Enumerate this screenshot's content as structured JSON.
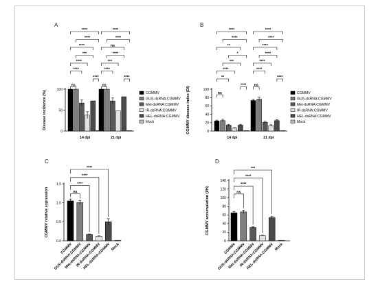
{
  "panels": [
    {
      "label": "A",
      "chart_data": {
        "type": "bar",
        "ylabel": "Disease incidence (%)",
        "xlabel": "",
        "ylim": [
          0,
          100
        ],
        "yticks": [
          "0",
          "50",
          "100"
        ],
        "categories": [
          "14 dpi",
          "21 dpi"
        ],
        "series": [
          {
            "name": "CGMMV",
            "values": [
              100,
              100
            ],
            "errors": [
              0,
              0
            ],
            "color": "#000000"
          },
          {
            "name": "GUS-dsRNA:CGMMV",
            "values": [
              100,
              100
            ],
            "errors": [
              0,
              0
            ],
            "color": "#7f7f7f"
          },
          {
            "name": "Met-dsRNA:CGMMV",
            "values": [
              67,
              72
            ],
            "errors": [
              7,
              7
            ],
            "color": "#595959"
          },
          {
            "name": "IR-dsRNA:CGMMV",
            "values": [
              38,
              48
            ],
            "errors": [
              8,
              0
            ],
            "color": "#e3e3e3"
          },
          {
            "name": "HEL-dsRNA:CGMMV",
            "values": [
              72,
              82
            ],
            "errors": [
              0,
              0
            ],
            "color": "#4a4a4a"
          },
          {
            "name": "Mock",
            "values": [
              0,
              0
            ],
            "errors": [
              0,
              0
            ],
            "color": "#bdbdbd"
          }
        ],
        "grid": false,
        "legend": "right"
      },
      "brackets": [
        {
          "group": 0,
          "from": 0,
          "to": 1,
          "label": "ns"
        },
        {
          "group": 0,
          "from": 0,
          "to": 2,
          "label": "****"
        },
        {
          "group": 0,
          "from": 0,
          "to": 3,
          "label": "****"
        },
        {
          "group": 0,
          "from": 0,
          "to": 4,
          "label": "****"
        },
        {
          "group": 0,
          "from": 0,
          "to": 5,
          "label": "****"
        },
        {
          "group": 0,
          "from": 1,
          "to": 4,
          "label": "***"
        },
        {
          "group": 0,
          "from": 1,
          "to": 5,
          "label": "****"
        },
        {
          "group": 0,
          "from": 4,
          "to": 5,
          "label": "****"
        },
        {
          "group": 1,
          "from": 0,
          "to": 1,
          "label": "ns"
        },
        {
          "group": 1,
          "from": 0,
          "to": 2,
          "label": "****"
        },
        {
          "group": 1,
          "from": 0,
          "to": 3,
          "label": "***"
        },
        {
          "group": 1,
          "from": 0,
          "to": 4,
          "label": "ns"
        },
        {
          "group": 1,
          "from": 0,
          "to": 5,
          "label": "****"
        },
        {
          "group": 1,
          "from": 1,
          "to": 4,
          "label": "****"
        },
        {
          "group": 1,
          "from": 1,
          "to": 5,
          "label": "****"
        },
        {
          "group": 1,
          "from": 4,
          "to": 5,
          "label": "****"
        }
      ]
    },
    {
      "label": "B",
      "chart_data": {
        "type": "bar",
        "ylabel": "CGMMV disease index (DI)",
        "xlabel": "",
        "ylim": [
          0,
          100
        ],
        "yticks": [
          "0",
          "20",
          "40",
          "60",
          "80",
          "100"
        ],
        "categories": [
          "14 dpi",
          "21 dpi"
        ],
        "series": [
          {
            "name": "CGMMV",
            "values": [
              24,
              73
            ],
            "errors": [
              2,
              3
            ],
            "color": "#000000"
          },
          {
            "name": "GUS-dsRNA:CGMMV",
            "values": [
              25,
              76
            ],
            "errors": [
              3,
              5
            ],
            "color": "#7f7f7f"
          },
          {
            "name": "Met-dsRNA:CGMMV",
            "values": [
              14,
              21
            ],
            "errors": [
              2,
              3
            ],
            "color": "#595959"
          },
          {
            "name": "IR-dsRNA:CGMMV",
            "values": [
              7,
              13
            ],
            "errors": [
              1,
              2
            ],
            "color": "#e3e3e3"
          },
          {
            "name": "HEL-dsRNA:CGMMV",
            "values": [
              14,
              25
            ],
            "errors": [
              2,
              2
            ],
            "color": "#4a4a4a"
          },
          {
            "name": "Mock",
            "values": [
              0,
              0
            ],
            "errors": [
              0,
              0
            ],
            "color": "#bdbdbd"
          }
        ],
        "grid": false,
        "legend": "right"
      },
      "brackets": [
        {
          "group": 0,
          "from": 0,
          "to": 1,
          "label": "ns"
        },
        {
          "group": 0,
          "from": 0,
          "to": 2,
          "label": "**"
        },
        {
          "group": 0,
          "from": 0,
          "to": 3,
          "label": "****"
        },
        {
          "group": 0,
          "from": 0,
          "to": 4,
          "label": "**"
        },
        {
          "group": 0,
          "from": 0,
          "to": 5,
          "label": "****"
        },
        {
          "group": 0,
          "from": 1,
          "to": 4,
          "label": "***"
        },
        {
          "group": 0,
          "from": 1,
          "to": 5,
          "label": "****"
        },
        {
          "group": 0,
          "from": 4,
          "to": 5,
          "label": "****"
        },
        {
          "group": 0,
          "from": 2,
          "to": 5,
          "label": "*"
        },
        {
          "group": 1,
          "from": 0,
          "to": 1,
          "label": "ns"
        },
        {
          "group": 1,
          "from": 0,
          "to": 2,
          "label": "****"
        },
        {
          "group": 1,
          "from": 0,
          "to": 3,
          "label": "****"
        },
        {
          "group": 1,
          "from": 0,
          "to": 4,
          "label": "****"
        },
        {
          "group": 1,
          "from": 0,
          "to": 5,
          "label": "****"
        },
        {
          "group": 1,
          "from": 1,
          "to": 4,
          "label": "****"
        },
        {
          "group": 1,
          "from": 1,
          "to": 5,
          "label": "****"
        },
        {
          "group": 1,
          "from": 4,
          "to": 5,
          "label": "****"
        }
      ]
    },
    {
      "label": "C",
      "chart_data": {
        "type": "bar",
        "ylabel": "CGMMV relative expression",
        "xlabel": "",
        "ylim": [
          0,
          1.5
        ],
        "yticks": [
          "0.0",
          "0.5",
          "1.0",
          "1.5"
        ],
        "categories": [
          "CGMMV",
          "GUS-dsRNA:CGMMV",
          "Met-dsRNA:CGMMV",
          "IR-dsRNA:CGMMV",
          "HEL-dsRNA:CGMMV",
          "Mock"
        ],
        "values": [
          1.05,
          1.01,
          0.17,
          0.12,
          0.5,
          0.0
        ],
        "errors": [
          0.05,
          0.05,
          0.01,
          0.01,
          0.08,
          0.0
        ],
        "colors": [
          "#000000",
          "#7f7f7f",
          "#595959",
          "#e3e3e3",
          "#4a4a4a",
          "#bdbdbd"
        ],
        "grid": false
      },
      "brackets": [
        {
          "from": 0,
          "to": 1,
          "label": "ns"
        },
        {
          "from": 0,
          "to": 2,
          "label": "****"
        },
        {
          "from": 0,
          "to": 3,
          "label": "****"
        },
        {
          "from": 0,
          "to": 4,
          "label": "****"
        }
      ]
    },
    {
      "label": "D",
      "chart_data": {
        "type": "bar",
        "ylabel": "CGMMV accumulation (I/H)",
        "xlabel": "",
        "ylim": [
          0,
          140
        ],
        "yticks": [
          "0",
          "20",
          "40",
          "60",
          "80",
          "100",
          "120",
          "140"
        ],
        "categories": [
          "CGMMV",
          "GUS-dsRNA:CGMMV",
          "Met-dsRNA:CGMMV",
          "IR-dsRNA:CGMMV",
          "HEL-dsRNA:CGMMV",
          "Mock"
        ],
        "values": [
          65,
          67,
          31,
          12,
          54,
          0
        ],
        "errors": [
          3,
          4,
          2,
          1,
          3,
          0
        ],
        "colors": [
          "#000000",
          "#7f7f7f",
          "#595959",
          "#e3e3e3",
          "#4a4a4a",
          "#bdbdbd"
        ],
        "grid": false
      },
      "brackets": [
        {
          "from": 0,
          "to": 1,
          "label": "ns"
        },
        {
          "from": 0,
          "to": 2,
          "label": "****"
        },
        {
          "from": 0,
          "to": 3,
          "label": "****"
        },
        {
          "from": 0,
          "to": 4,
          "label": "***"
        }
      ]
    }
  ]
}
